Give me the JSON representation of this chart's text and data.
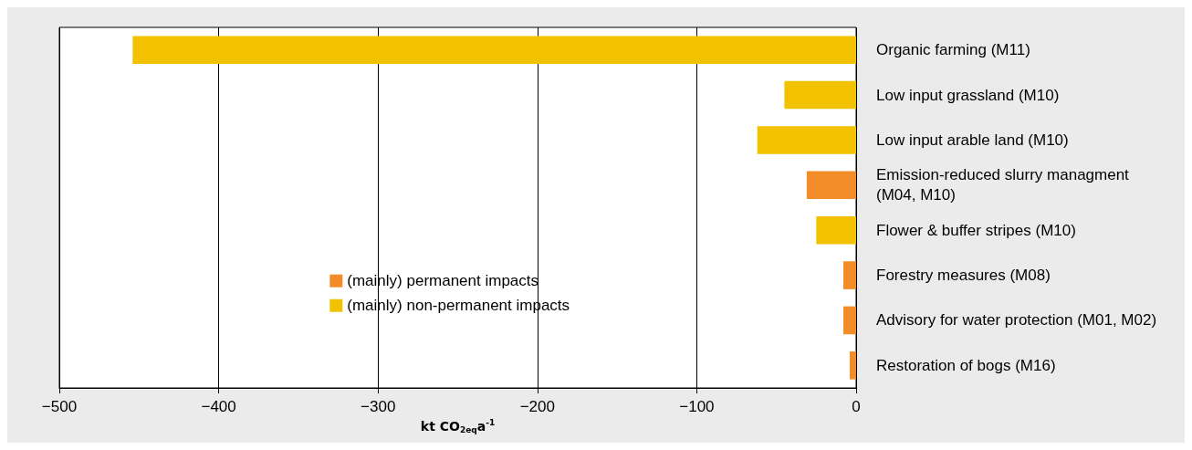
{
  "chart_data": {
    "type": "bar",
    "orientation": "horizontal",
    "stacked": true,
    "categories": [
      "Organic farming (M11)",
      "Low input grassland (M10)",
      "Low input arable land (M10)",
      "Emission-reduced slurry managment (M04, M10)",
      "Flower & buffer stripes (M10)",
      "Forestry measures (M08)",
      "Advisory for water protection (M01, M02)",
      "Restoration of bogs (M16)"
    ],
    "series": [
      {
        "name": "(mainly) permanent impacts",
        "color": "#f28c28",
        "values": [
          null,
          null,
          null,
          -31,
          null,
          -8,
          -8,
          -4
        ]
      },
      {
        "name": "(mainly) non-permanent impacts",
        "color": "#f2c200",
        "values": [
          -454,
          -45,
          -62,
          null,
          -25,
          null,
          null,
          null
        ]
      }
    ],
    "xlabel": "kt CO$_{2eq}$a$^{-1}$",
    "xlim": [
      -500,
      0
    ],
    "xticks": [
      -500,
      -400,
      -300,
      -200,
      -100,
      0
    ],
    "grid": "x",
    "legend": "bottom"
  }
}
